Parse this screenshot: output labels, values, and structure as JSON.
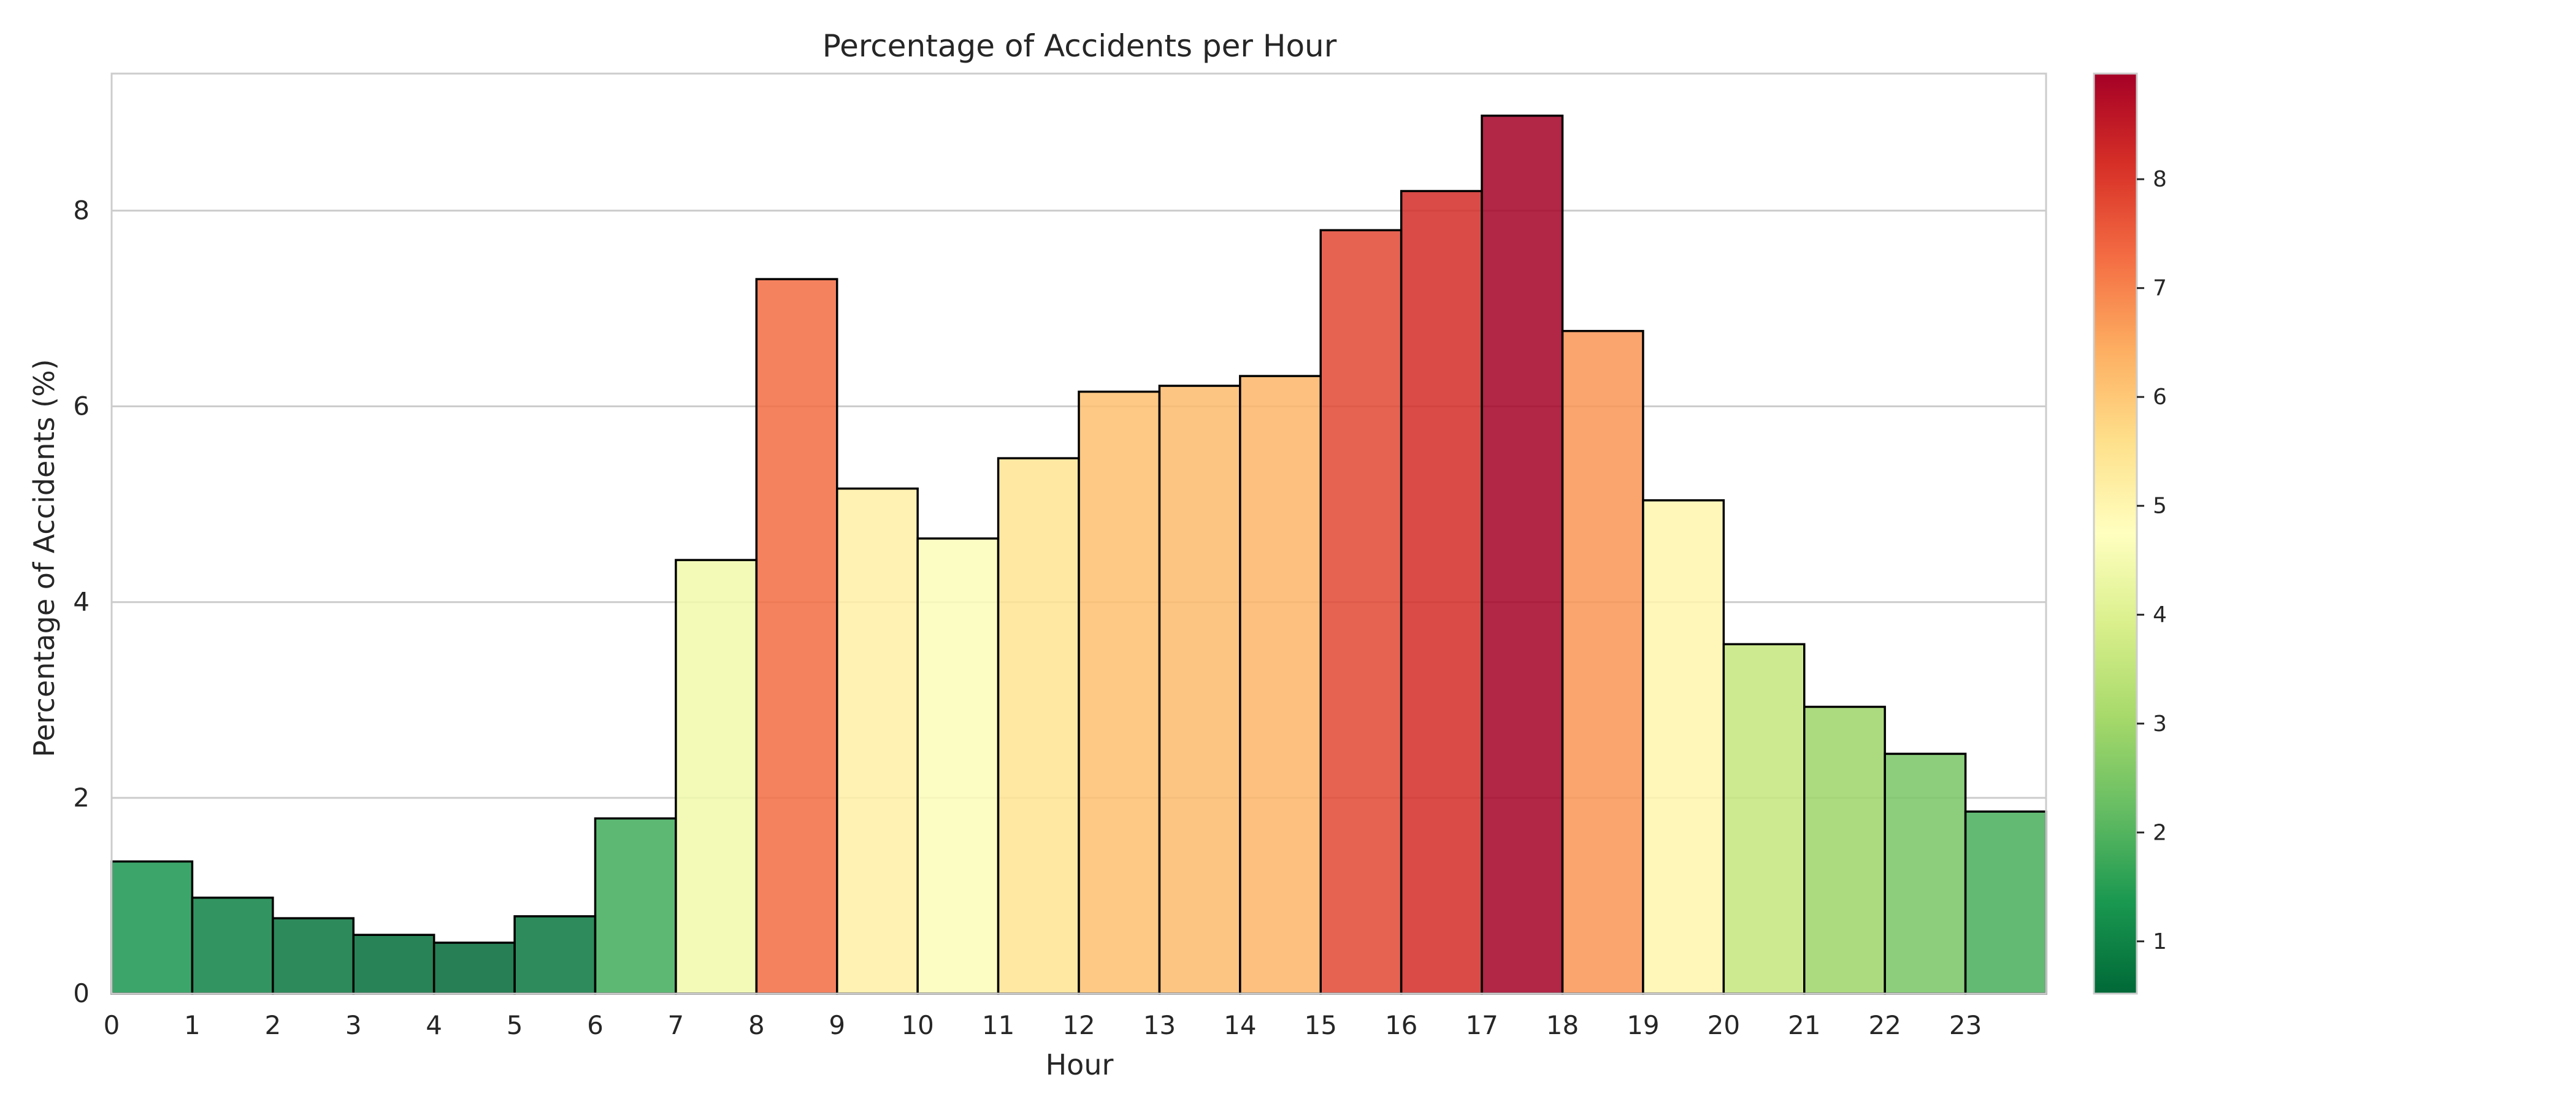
{
  "chart_data": {
    "type": "bar",
    "title": "Percentage of Accidents per Hour",
    "xlabel": "Hour",
    "ylabel": "Percentage of Accidents (%)",
    "categories": [
      "0",
      "1",
      "2",
      "3",
      "4",
      "5",
      "6",
      "7",
      "8",
      "9",
      "10",
      "11",
      "12",
      "13",
      "14",
      "15",
      "16",
      "17",
      "18",
      "19",
      "20",
      "21",
      "22",
      "23"
    ],
    "values": [
      1.35,
      0.98,
      0.77,
      0.6,
      0.52,
      0.79,
      1.79,
      4.43,
      7.3,
      5.16,
      4.65,
      5.47,
      6.15,
      6.21,
      6.31,
      7.8,
      8.2,
      8.97,
      6.77,
      5.04,
      3.57,
      2.93,
      2.45,
      1.86
    ],
    "ylim": [
      0,
      9.4
    ],
    "yticks": [
      0,
      2,
      4,
      6,
      8
    ],
    "grid": "horizontal",
    "colormap": "RdYlGn_r",
    "colorbar": {
      "range": [
        0.52,
        8.97
      ],
      "ticks": [
        1,
        2,
        3,
        4,
        5,
        6,
        7,
        8
      ],
      "colors": [
        "#006837",
        "#1a9850",
        "#66bd63",
        "#a6d96a",
        "#d9ef8b",
        "#ffffbf",
        "#fee08b",
        "#fdae61",
        "#f46d43",
        "#d73027",
        "#a50026"
      ]
    },
    "bar_edge_color": "#000000"
  }
}
